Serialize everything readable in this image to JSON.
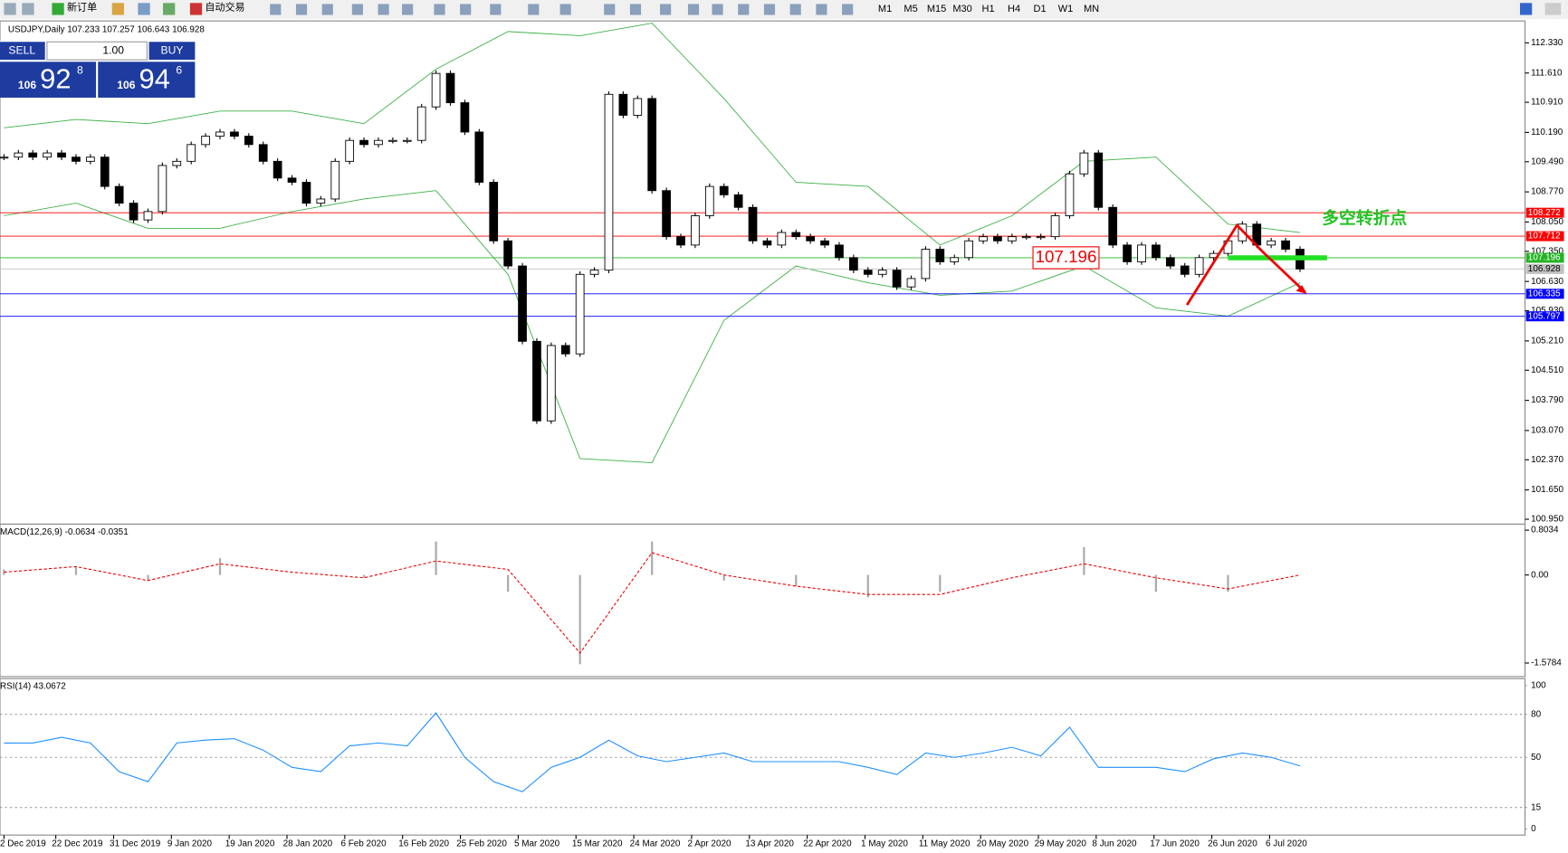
{
  "toolbar": {
    "new_order": "新订单",
    "auto_trading": "自动交易",
    "timeframes": [
      "M1",
      "M5",
      "M15",
      "M30",
      "H1",
      "H4",
      "D1",
      "W1",
      "MN"
    ]
  },
  "trade_panel": {
    "sell": "SELL",
    "buy": "BUY",
    "lot": "1.00",
    "sell_price": {
      "prefix": "106",
      "big": "92",
      "sup": "8"
    },
    "buy_price": {
      "prefix": "106",
      "big": "94",
      "sup": "6"
    }
  },
  "chart_data": {
    "type": "candlestick",
    "title": "USDJPY,Daily  107.233 107.257 106.643 106.928",
    "categories": [
      "2 Dec 2019",
      "22 Dec 2019",
      "31 Dec 2019",
      "9 Jan 2020",
      "19 Jan 2020",
      "28 Jan 2020",
      "6 Feb 2020",
      "16 Feb 2020",
      "25 Feb 2020",
      "5 Mar 2020",
      "15 Mar 2020",
      "24 Mar 2020",
      "2 Apr 2020",
      "13 Apr 2020",
      "22 Apr 2020",
      "1 May 2020",
      "11 May 2020",
      "20 May 2020",
      "29 May 2020",
      "8 Jun 2020",
      "17 Jun 2020",
      "26 Jun 2020",
      "6 Jul 2020"
    ],
    "closes": [
      109.6,
      109.7,
      109.6,
      109.7,
      109.6,
      109.5,
      109.6,
      108.9,
      108.5,
      108.1,
      108.3,
      109.4,
      109.5,
      109.9,
      110.1,
      110.2,
      110.1,
      109.9,
      109.5,
      109.1,
      109.0,
      108.5,
      108.6,
      109.5,
      110.0,
      109.9,
      110.0,
      110.0,
      110.0,
      110.8,
      111.6,
      110.9,
      110.2,
      109.0,
      107.6,
      107.0,
      105.2,
      103.3,
      105.1,
      104.9,
      106.8,
      106.9,
      111.1,
      110.6,
      111.0,
      108.8,
      107.7,
      107.5,
      108.2,
      108.9,
      108.7,
      108.4,
      107.6,
      107.5,
      107.8,
      107.7,
      107.6,
      107.5,
      107.2,
      106.9,
      106.8,
      106.9,
      106.5,
      106.7,
      107.4,
      107.1,
      107.2,
      107.6,
      107.7,
      107.6,
      107.7,
      107.7,
      107.7,
      108.2,
      109.2,
      109.7,
      108.4,
      107.5,
      107.1,
      107.5,
      107.2,
      107.0,
      106.8,
      107.2,
      107.3,
      107.6,
      108.0,
      107.5,
      107.6,
      107.4,
      106.928
    ],
    "bands": {
      "color": "#3cb043",
      "upper": [
        110.3,
        110.5,
        110.4,
        110.7,
        110.7,
        110.4,
        111.7,
        112.6,
        112.5,
        112.8,
        111.0,
        109.0,
        108.9,
        107.5,
        108.2,
        109.5,
        109.6,
        108.0,
        107.8
      ],
      "lower": [
        108.2,
        108.5,
        107.9,
        107.9,
        108.3,
        108.6,
        108.8,
        106.8,
        102.4,
        102.3,
        105.7,
        107.0,
        106.6,
        106.3,
        106.4,
        107.0,
        106.0,
        105.8,
        106.6
      ]
    },
    "ylim": [
      100.88,
      112.83
    ],
    "yticks": [
      {
        "value": 112.33,
        "label": "112.330"
      },
      {
        "value": 111.61,
        "label": "111.610"
      },
      {
        "value": 110.91,
        "label": "110.910"
      },
      {
        "value": 110.19,
        "label": "110.190"
      },
      {
        "value": 109.49,
        "label": "109.490"
      },
      {
        "value": 108.77,
        "label": "108.770"
      },
      {
        "value": 108.05,
        "label": "108.050"
      },
      {
        "value": 107.35,
        "label": "107.350"
      },
      {
        "value": 106.63,
        "label": "106.630"
      },
      {
        "value": 105.93,
        "label": "105.930"
      },
      {
        "value": 105.21,
        "label": "105.210"
      },
      {
        "value": 104.51,
        "label": "104.510"
      },
      {
        "value": 103.79,
        "label": "103.790"
      },
      {
        "value": 103.07,
        "label": "103.070"
      },
      {
        "value": 102.37,
        "label": "102.370"
      },
      {
        "value": 101.65,
        "label": "101.650"
      },
      {
        "value": 100.95,
        "label": "100.950"
      }
    ],
    "levels": [
      {
        "value": 108.272,
        "color": "#ff0000"
      },
      {
        "value": 107.712,
        "color": "#ff0000"
      },
      {
        "value": 107.196,
        "color": "#22b422"
      },
      {
        "value": 106.928,
        "color": "#c0c0c0"
      },
      {
        "value": 106.335,
        "color": "#0000ff"
      },
      {
        "value": 105.797,
        "color": "#0000ff"
      }
    ],
    "annotation": "多空转折点",
    "macd": {
      "label": "MACD(12,26,9) -0.0634 -0.0351",
      "ylim": [
        -1.804,
        0.911
      ],
      "yticks": [
        0.8034,
        {
          "value": 0,
          "label": "0.00"
        },
        -1.5784
      ],
      "main": [
        0.1,
        0.15,
        -0.1,
        0.3,
        0.0,
        -0.05,
        0.6,
        -0.3,
        -1.6,
        0.6,
        -0.1,
        -0.2,
        -0.4,
        -0.3,
        0.0,
        0.5,
        -0.3,
        -0.3,
        0.0
      ],
      "signal": [
        0.05,
        0.15,
        -0.1,
        0.2,
        0.05,
        -0.05,
        0.25,
        0.1,
        -1.4,
        0.4,
        0.0,
        -0.2,
        -0.35,
        -0.35,
        -0.05,
        0.2,
        -0.05,
        -0.25,
        0.0
      ]
    },
    "rsi": {
      "label": "RSI(14) 43.0672",
      "ylim": [
        -4.2,
        104.2
      ],
      "yticks": [
        100,
        80,
        50,
        15,
        0
      ],
      "values": [
        60,
        60,
        64,
        60,
        40,
        33,
        60,
        62,
        63,
        55,
        43,
        40,
        58,
        60,
        58,
        81,
        50,
        33,
        26,
        43,
        50,
        62,
        51,
        47,
        50,
        53,
        47,
        47,
        47,
        47,
        43,
        38,
        53,
        50,
        53,
        57,
        51,
        71,
        43,
        43,
        43,
        40,
        49,
        53,
        50,
        44
      ]
    }
  }
}
